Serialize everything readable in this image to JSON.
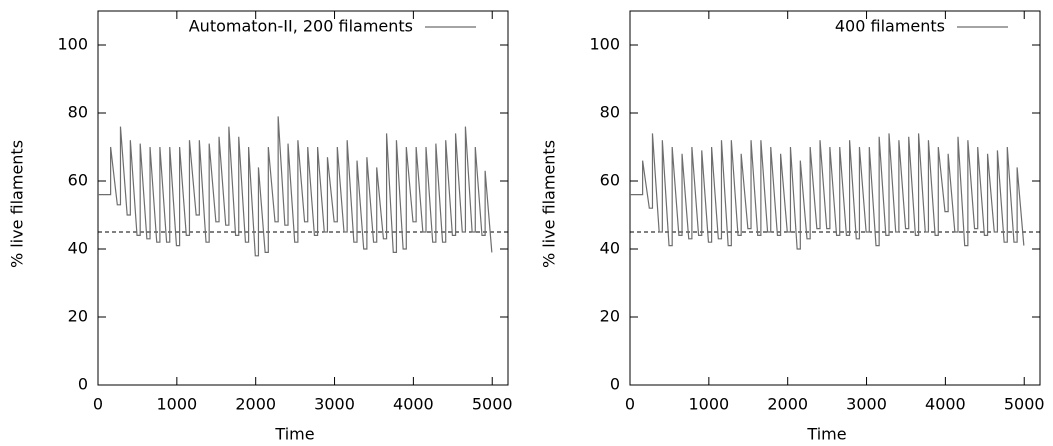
{
  "chart_data": [
    {
      "type": "line",
      "xlabel": "Time",
      "ylabel": "% live filaments",
      "xlim": [
        0,
        5200
      ],
      "ylim": [
        0,
        110
      ],
      "xticks": [
        0,
        1000,
        2000,
        3000,
        4000,
        5000
      ],
      "yticks": [
        0,
        20,
        40,
        60,
        80,
        100
      ],
      "reference_line": 45,
      "legend": "upper right",
      "x": [
        0,
        100,
        160,
        160,
        245,
        285,
        285,
        370,
        410,
        410,
        495,
        535,
        535,
        620,
        660,
        660,
        745,
        785,
        785,
        870,
        910,
        910,
        995,
        1035,
        1035,
        1120,
        1160,
        1160,
        1245,
        1285,
        1285,
        1370,
        1410,
        1410,
        1495,
        1535,
        1535,
        1620,
        1660,
        1660,
        1745,
        1785,
        1785,
        1870,
        1910,
        1910,
        1995,
        2035,
        2035,
        2120,
        2160,
        2160,
        2245,
        2285,
        2285,
        2370,
        2410,
        2410,
        2495,
        2535,
        2535,
        2620,
        2660,
        2660,
        2745,
        2785,
        2785,
        2870,
        2910,
        2910,
        2995,
        3035,
        3035,
        3120,
        3160,
        3160,
        3245,
        3285,
        3285,
        3370,
        3410,
        3410,
        3495,
        3535,
        3535,
        3620,
        3660,
        3660,
        3745,
        3785,
        3785,
        3870,
        3910,
        3910,
        3995,
        4035,
        4035,
        4120,
        4160,
        4160,
        4245,
        4285,
        4285,
        4370,
        4410,
        4410,
        4495,
        4535,
        4535,
        4620,
        4660,
        4660,
        4745,
        4785,
        4785,
        4870,
        4910,
        4910,
        4995
      ],
      "series": [
        {
          "name": "Automaton-II, 200 filaments",
          "color": "#6e6e6e",
          "values": [
            56,
            56,
            56,
            70,
            53,
            53,
            76,
            50,
            50,
            72,
            44,
            44,
            71,
            43,
            43,
            70,
            42,
            42,
            70,
            42,
            42,
            70,
            41,
            41,
            70,
            44,
            44,
            72,
            50,
            50,
            72,
            42,
            42,
            71,
            48,
            48,
            73,
            47,
            47,
            76,
            44,
            44,
            73,
            42,
            42,
            70,
            38,
            38,
            64,
            39,
            39,
            70,
            48,
            48,
            79,
            47,
            47,
            71,
            42,
            42,
            72,
            48,
            48,
            70,
            44,
            44,
            70,
            45,
            45,
            67,
            48,
            48,
            70,
            45,
            45,
            72,
            42,
            42,
            66,
            40,
            40,
            67,
            42,
            42,
            64,
            43,
            43,
            74,
            39,
            39,
            72,
            40,
            40,
            70,
            48,
            48,
            70,
            45,
            45,
            70,
            42,
            42,
            71,
            42,
            42,
            72,
            44,
            44,
            74,
            45,
            45,
            76,
            45,
            45,
            70,
            44,
            44,
            63,
            39
          ]
        }
      ]
    },
    {
      "type": "line",
      "xlabel": "Time",
      "ylabel": "% live filaments",
      "xlim": [
        0,
        5200
      ],
      "ylim": [
        0,
        110
      ],
      "xticks": [
        0,
        1000,
        2000,
        3000,
        4000,
        5000
      ],
      "yticks": [
        0,
        20,
        40,
        60,
        80,
        100
      ],
      "reference_line": 45,
      "legend": "upper right",
      "x": [
        0,
        100,
        160,
        160,
        245,
        285,
        285,
        370,
        410,
        410,
        495,
        535,
        535,
        620,
        660,
        660,
        745,
        785,
        785,
        870,
        910,
        910,
        995,
        1035,
        1035,
        1120,
        1160,
        1160,
        1245,
        1285,
        1285,
        1370,
        1410,
        1410,
        1495,
        1535,
        1535,
        1620,
        1660,
        1660,
        1745,
        1785,
        1785,
        1870,
        1910,
        1910,
        1995,
        2035,
        2035,
        2120,
        2160,
        2160,
        2245,
        2285,
        2285,
        2370,
        2410,
        2410,
        2495,
        2535,
        2535,
        2620,
        2660,
        2660,
        2745,
        2785,
        2785,
        2870,
        2910,
        2910,
        2995,
        3035,
        3035,
        3120,
        3160,
        3160,
        3245,
        3285,
        3285,
        3370,
        3410,
        3410,
        3495,
        3535,
        3535,
        3620,
        3660,
        3660,
        3745,
        3785,
        3785,
        3870,
        3910,
        3910,
        3995,
        4035,
        4035,
        4120,
        4160,
        4160,
        4245,
        4285,
        4285,
        4370,
        4410,
        4410,
        4495,
        4535,
        4535,
        4620,
        4660,
        4660,
        4745,
        4785,
        4785,
        4870,
        4910,
        4910,
        4995
      ],
      "series": [
        {
          "name": "400 filaments",
          "color": "#6e6e6e",
          "values": [
            56,
            56,
            56,
            66,
            52,
            52,
            74,
            45,
            45,
            72,
            41,
            41,
            70,
            44,
            44,
            68,
            43,
            43,
            70,
            44,
            44,
            69,
            42,
            42,
            70,
            43,
            43,
            72,
            41,
            41,
            72,
            44,
            44,
            68,
            46,
            46,
            72,
            44,
            44,
            72,
            45,
            45,
            70,
            44,
            44,
            68,
            45,
            45,
            70,
            40,
            40,
            66,
            43,
            43,
            70,
            46,
            46,
            72,
            46,
            46,
            70,
            44,
            44,
            70,
            44,
            44,
            72,
            43,
            43,
            70,
            45,
            45,
            70,
            41,
            41,
            73,
            44,
            44,
            74,
            45,
            45,
            72,
            46,
            46,
            73,
            44,
            44,
            74,
            45,
            45,
            72,
            44,
            44,
            70,
            51,
            51,
            68,
            45,
            45,
            73,
            41,
            41,
            72,
            46,
            46,
            70,
            44,
            44,
            68,
            45,
            45,
            69,
            42,
            42,
            70,
            42,
            42,
            64,
            41
          ]
        }
      ]
    }
  ]
}
